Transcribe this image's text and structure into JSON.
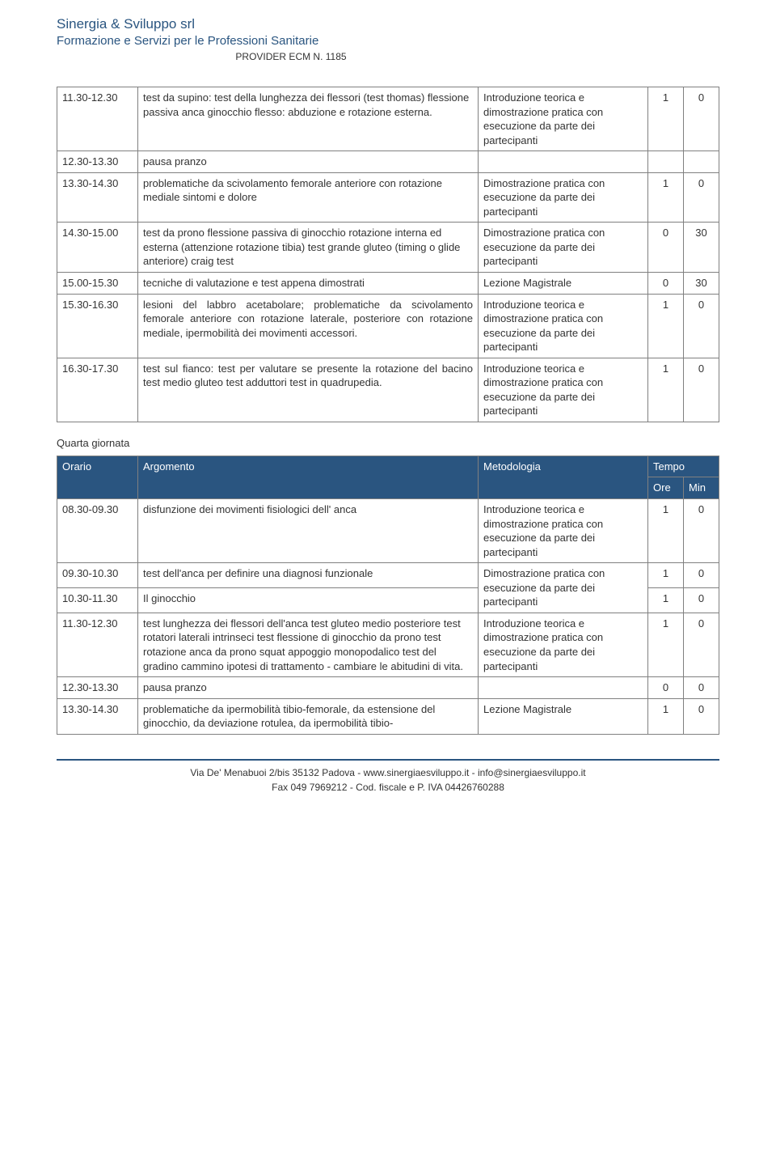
{
  "header": {
    "company": "Sinergia & Sviluppo srl",
    "subtitle": "Formazione e Servizi per le Professioni Sanitarie",
    "provider": "PROVIDER ECM N. 1185"
  },
  "colors": {
    "brand": "#2a5580",
    "border": "#808080",
    "bg": "#ffffff",
    "text": "#333333"
  },
  "table1": {
    "rows": [
      {
        "time": "11.30-12.30",
        "topic": "test da supino: test della lunghezza dei flessori (test thomas) flessione passiva anca ginocchio flesso: abduzione e rotazione esterna.",
        "method": "Introduzione teorica e dimostrazione pratica con esecuzione da parte dei partecipanti",
        "h": "1",
        "m": "0"
      },
      {
        "time": "12.30-13.30",
        "topic": "pausa pranzo",
        "method": "",
        "h": "",
        "m": ""
      },
      {
        "time": "13.30-14.30",
        "topic": "problematiche da scivolamento femorale anteriore con rotazione mediale sintomi e dolore",
        "method": "Dimostrazione pratica con esecuzione da parte dei partecipanti",
        "h": "1",
        "m": "0"
      },
      {
        "time": "14.30-15.00",
        "topic": "test da prono flessione passiva di ginocchio rotazione interna ed esterna (attenzione rotazione tibia) test grande gluteo (timing o glide anteriore) craig test",
        "method": "Dimostrazione pratica con esecuzione da parte dei partecipanti",
        "h": "0",
        "m": "30"
      },
      {
        "time": "15.00-15.30",
        "topic": "tecniche di valutazione e test appena dimostrati",
        "method": "Lezione Magistrale",
        "h": "0",
        "m": "30"
      },
      {
        "time": "15.30-16.30",
        "topic": "lesioni del labbro acetabolare; problematiche da scivolamento femorale anteriore con rotazione laterale, posteriore con rotazione mediale, ipermobilità dei movimenti accessori.",
        "method": "Introduzione teorica e dimostrazione pratica con esecuzione da parte dei partecipanti",
        "h": "1",
        "m": "0",
        "justify": true
      },
      {
        "time": "16.30-17.30",
        "topic": "test sul fianco: test per valutare se presente la rotazione del bacino test medio gluteo test adduttori test in quadrupedia.",
        "method": "Introduzione teorica e dimostrazione pratica con esecuzione da parte dei partecipanti",
        "h": "1",
        "m": "0",
        "justify": true
      }
    ]
  },
  "day_label": "Quarta giornata",
  "table2": {
    "headers": {
      "time": "Orario",
      "topic": "Argomento",
      "method": "Metodologia",
      "tempo": "Tempo",
      "h": "Ore",
      "m": "Min"
    },
    "rows": [
      {
        "time": "08.30-09.30",
        "topic": "disfunzione dei movimenti fisiologici dell' anca",
        "method": "Introduzione teorica e dimostrazione pratica con esecuzione da parte dei partecipanti",
        "h": "1",
        "m": "0"
      },
      {
        "time": "09.30-10.30",
        "topic": "test dell'anca per definire una diagnosi funzionale",
        "method_span": "Dimostrazione pratica con esecuzione da parte dei partecipanti",
        "h": "1",
        "m": "0"
      },
      {
        "time": "10.30-11.30",
        "topic": "Il ginocchio",
        "h": "1",
        "m": "0"
      },
      {
        "time": "11.30-12.30",
        "topic": "test lunghezza dei flessori dell'anca test gluteo medio posteriore test rotatori laterali intrinseci test flessione di ginocchio da prono test rotazione anca da prono squat appoggio monopodalico test del gradino cammino ipotesi di trattamento - cambiare le abitudini di vita.",
        "method": "Introduzione teorica e dimostrazione pratica con esecuzione da parte dei partecipanti",
        "h": "1",
        "m": "0"
      },
      {
        "time": "12.30-13.30",
        "topic": "pausa pranzo",
        "method": "",
        "h": "0",
        "m": "0"
      },
      {
        "time": "13.30-14.30",
        "topic": "problematiche da ipermobilità tibio-femorale, da estensione del ginocchio, da deviazione rotulea, da ipermobilità tibio-",
        "method": "Lezione Magistrale",
        "h": "1",
        "m": "0"
      }
    ]
  },
  "footer": {
    "line1": "Via De' Menabuoi 2/bis  35132 Padova - www.sinergiaesviluppo.it - info@sinergiaesviluppo.it",
    "line2": "Fax 049 7969212 - Cod. fiscale e P. IVA 04426760288"
  }
}
